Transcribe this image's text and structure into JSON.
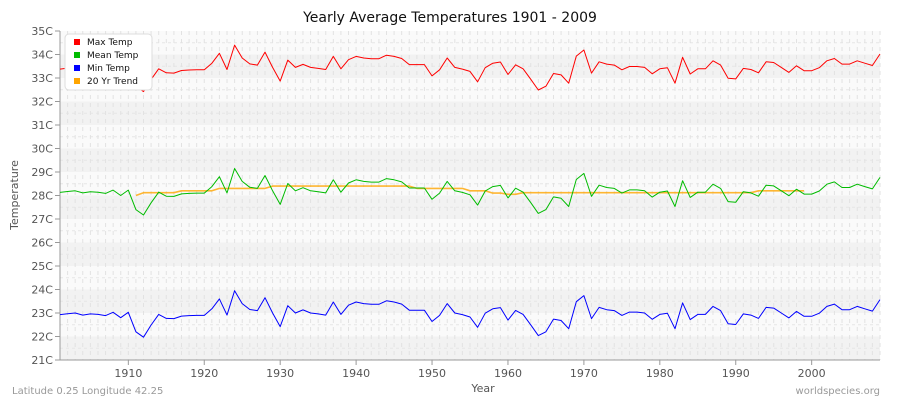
{
  "chart_data": {
    "type": "line",
    "title": "Yearly Average Temperatures 1901 - 2009",
    "xlabel": "Year",
    "ylabel": "Temperature",
    "xlim": [
      1901,
      2009
    ],
    "ylim": [
      21,
      35
    ],
    "y_unit_suffix": "C",
    "x_ticks": [
      1910,
      1920,
      1930,
      1940,
      1950,
      1960,
      1970,
      1980,
      1990,
      2000
    ],
    "y_ticks": [
      21,
      22,
      23,
      24,
      25,
      26,
      27,
      28,
      29,
      30,
      31,
      32,
      33,
      34,
      35
    ],
    "grid": true,
    "legend_position": "top-left",
    "series": [
      {
        "name": "Max Temp",
        "color": "#ff0000",
        "x_start": 1901,
        "values": [
          33.38,
          33.42,
          33.45,
          33.36,
          33.41,
          33.39,
          33.34,
          33.48,
          33.25,
          33.48,
          32.65,
          32.42,
          32.94,
          33.39,
          33.22,
          33.21,
          33.32,
          33.34,
          33.35,
          33.35,
          33.63,
          34.05,
          33.36,
          34.4,
          33.85,
          33.6,
          33.55,
          34.1,
          33.45,
          32.87,
          33.76,
          33.45,
          33.58,
          33.45,
          33.41,
          33.36,
          33.92,
          33.39,
          33.78,
          33.92,
          33.85,
          33.82,
          33.82,
          33.97,
          33.92,
          33.83,
          33.57,
          33.57,
          33.57,
          33.09,
          33.35,
          33.85,
          33.45,
          33.38,
          33.28,
          32.84,
          33.44,
          33.63,
          33.68,
          33.15,
          33.56,
          33.39,
          32.95,
          32.49,
          32.65,
          33.19,
          33.13,
          32.78,
          33.93,
          34.19,
          33.21,
          33.69,
          33.59,
          33.55,
          33.35,
          33.49,
          33.49,
          33.45,
          33.18,
          33.39,
          33.44,
          32.78,
          33.88,
          33.17,
          33.39,
          33.39,
          33.73,
          33.55,
          32.99,
          32.96,
          33.41,
          33.36,
          33.22,
          33.69,
          33.66,
          33.45,
          33.24,
          33.52,
          33.31,
          33.31,
          33.44,
          33.73,
          33.83,
          33.59,
          33.59,
          33.73,
          33.63,
          33.53,
          34.02
        ]
      },
      {
        "name": "Mean Temp",
        "color": "#00bb00",
        "x_start": 1901,
        "values": [
          28.13,
          28.17,
          28.2,
          28.11,
          28.16,
          28.14,
          28.09,
          28.23,
          28.0,
          28.23,
          27.4,
          27.17,
          27.69,
          28.14,
          27.97,
          27.96,
          28.07,
          28.09,
          28.1,
          28.1,
          28.38,
          28.8,
          28.11,
          29.15,
          28.6,
          28.35,
          28.3,
          28.85,
          28.2,
          27.62,
          28.51,
          28.2,
          28.33,
          28.2,
          28.16,
          28.11,
          28.67,
          28.14,
          28.53,
          28.67,
          28.6,
          28.57,
          28.57,
          28.72,
          28.67,
          28.58,
          28.32,
          28.32,
          28.32,
          27.84,
          28.1,
          28.6,
          28.2,
          28.13,
          28.03,
          27.59,
          28.19,
          28.38,
          28.43,
          27.9,
          28.31,
          28.14,
          27.7,
          27.24,
          27.4,
          27.94,
          27.88,
          27.53,
          28.68,
          28.94,
          27.96,
          28.44,
          28.34,
          28.3,
          28.1,
          28.24,
          28.24,
          28.2,
          27.93,
          28.14,
          28.19,
          27.53,
          28.63,
          27.92,
          28.14,
          28.14,
          28.48,
          28.3,
          27.74,
          27.71,
          28.16,
          28.11,
          27.97,
          28.44,
          28.41,
          28.2,
          27.99,
          28.27,
          28.06,
          28.06,
          28.19,
          28.48,
          28.58,
          28.34,
          28.34,
          28.48,
          28.38,
          28.28,
          28.77
        ]
      },
      {
        "name": "Min Temp",
        "color": "#0000ff",
        "x_start": 1901,
        "values": [
          22.93,
          22.97,
          23.0,
          22.91,
          22.96,
          22.94,
          22.89,
          23.03,
          22.8,
          23.03,
          22.2,
          21.97,
          22.49,
          22.94,
          22.77,
          22.76,
          22.87,
          22.89,
          22.9,
          22.9,
          23.18,
          23.6,
          22.91,
          23.95,
          23.4,
          23.15,
          23.1,
          23.65,
          23.0,
          22.42,
          23.31,
          23.0,
          23.13,
          23.0,
          22.96,
          22.91,
          23.47,
          22.94,
          23.33,
          23.47,
          23.4,
          23.37,
          23.37,
          23.52,
          23.47,
          23.38,
          23.12,
          23.12,
          23.12,
          22.64,
          22.9,
          23.4,
          23.0,
          22.93,
          22.83,
          22.39,
          22.99,
          23.18,
          23.23,
          22.7,
          23.11,
          22.94,
          22.5,
          22.04,
          22.2,
          22.74,
          22.68,
          22.33,
          23.48,
          23.74,
          22.76,
          23.24,
          23.14,
          23.1,
          22.9,
          23.04,
          23.04,
          23.0,
          22.73,
          22.94,
          22.99,
          22.33,
          23.43,
          22.72,
          22.94,
          22.94,
          23.28,
          23.1,
          22.54,
          22.51,
          22.96,
          22.91,
          22.77,
          23.24,
          23.21,
          23.0,
          22.79,
          23.07,
          22.86,
          22.86,
          22.99,
          23.28,
          23.38,
          23.14,
          23.14,
          23.28,
          23.18,
          23.08,
          23.57
        ]
      },
      {
        "name": "20 Yr Trend",
        "color": "#ffa500",
        "x_start": 1911,
        "values": [
          28.0,
          28.12,
          28.12,
          28.12,
          28.12,
          28.12,
          28.2,
          28.2,
          28.2,
          28.2,
          28.2,
          28.3,
          28.3,
          28.3,
          28.3,
          28.3,
          28.3,
          28.3,
          28.4,
          28.4,
          28.4,
          28.4,
          28.4,
          28.4,
          28.4,
          28.4,
          28.4,
          28.4,
          28.4,
          28.4,
          28.4,
          28.4,
          28.4,
          28.4,
          28.4,
          28.4,
          28.4,
          28.3,
          28.3,
          28.3,
          28.3,
          28.3,
          28.3,
          28.3,
          28.2,
          28.2,
          28.2,
          28.1,
          28.1,
          28.05,
          28.05,
          28.12,
          28.12,
          28.12,
          28.12,
          28.12,
          28.12,
          28.12,
          28.12,
          28.12,
          28.12,
          28.12,
          28.12,
          28.12,
          28.12,
          28.12,
          28.12,
          28.12,
          28.12,
          28.12,
          28.12,
          28.12,
          28.12,
          28.12,
          28.12,
          28.12,
          28.12,
          28.12,
          28.12,
          28.12,
          28.12,
          28.12,
          28.2,
          28.2,
          28.2,
          28.2,
          28.2,
          28.2,
          28.2
        ]
      }
    ]
  },
  "footer": {
    "location": "Latitude 0.25 Longitude 42.25",
    "source": "worldspecies.org"
  }
}
